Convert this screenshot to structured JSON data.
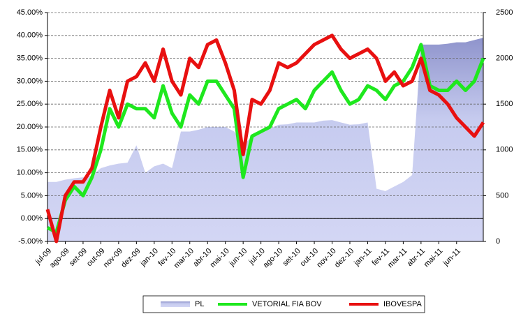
{
  "chart_data": {
    "type": "line",
    "categories": [
      "jul-09",
      null,
      "ago-09",
      null,
      "set-09",
      null,
      "out-09",
      null,
      "nov-09",
      null,
      "dez-09",
      null,
      "jan-10",
      null,
      "fev-10",
      null,
      "mar-10",
      null,
      "abr-10",
      null,
      "mai-10",
      null,
      "jun-10",
      null,
      "jul-10",
      null,
      "ago-10",
      null,
      "set-10",
      null,
      "out-10",
      null,
      "nov-10",
      null,
      "dez-10",
      null,
      "jan-11",
      null,
      "fev-11",
      null,
      "mar-11",
      null,
      "abr-11",
      null,
      "mai-11",
      null,
      "jun-11",
      null,
      null,
      null
    ],
    "series": [
      {
        "name": "PL",
        "kind": "area",
        "axis": "y2",
        "color": "#c8ccf0",
        "values": [
          650,
          650,
          675,
          690,
          700,
          720,
          800,
          830,
          850,
          860,
          1050,
          750,
          820,
          850,
          800,
          1200,
          1200,
          1220,
          1250,
          1250,
          1250,
          1200,
          1050,
          1150,
          1200,
          1230,
          1275,
          1280,
          1300,
          1300,
          1300,
          1320,
          1325,
          1300,
          1275,
          1280,
          1300,
          575,
          550,
          600,
          650,
          725,
          2150,
          2150,
          2150,
          2160,
          2175,
          2175,
          2200,
          2225
        ]
      },
      {
        "name": "VETORIAL FIA BOV",
        "kind": "line",
        "color": "#1ee81e",
        "values": [
          -2,
          -3,
          4,
          7,
          5,
          9,
          15,
          24,
          20,
          25,
          24,
          24,
          22,
          29,
          23,
          20,
          27,
          25,
          30,
          30,
          27,
          24,
          9,
          18,
          19,
          20,
          24,
          25,
          26,
          24,
          28,
          30,
          32,
          28,
          25,
          26,
          29,
          28,
          26,
          29,
          30,
          33,
          38,
          29,
          28,
          28,
          30,
          28,
          30,
          35
        ]
      },
      {
        "name": "IBOVESPA",
        "kind": "line",
        "color": "#e81010",
        "values": [
          2,
          -5,
          5,
          8,
          8,
          11,
          20,
          28,
          22,
          30,
          31,
          34,
          30,
          37,
          30,
          27,
          35,
          33,
          38,
          39,
          34,
          28,
          14,
          26,
          25,
          28,
          34,
          33,
          34,
          36,
          38,
          39,
          40,
          37,
          35,
          36,
          37,
          35,
          30,
          32,
          29,
          30,
          35,
          28,
          27,
          25,
          22,
          20,
          18,
          21
        ]
      }
    ],
    "ylim": [
      -5,
      45
    ],
    "yticks": [
      {
        "value": -5,
        "label": "-5.00%"
      },
      {
        "value": 0,
        "label": "0.00%"
      },
      {
        "value": 5,
        "label": "5.00%"
      },
      {
        "value": 10,
        "label": "10.00%"
      },
      {
        "value": 15,
        "label": "15.00%"
      },
      {
        "value": 20,
        "label": "20.00%"
      },
      {
        "value": 25,
        "label": "25.00%"
      },
      {
        "value": 30,
        "label": "30.00%"
      },
      {
        "value": 35,
        "label": "35.00%"
      },
      {
        "value": 40,
        "label": "40.00%"
      },
      {
        "value": 45,
        "label": "45.00%"
      }
    ],
    "y2lim": [
      0,
      2500
    ],
    "y2ticks": [
      0,
      500,
      1000,
      1500,
      2000,
      2500
    ],
    "grid": true,
    "legend": "bottom"
  }
}
